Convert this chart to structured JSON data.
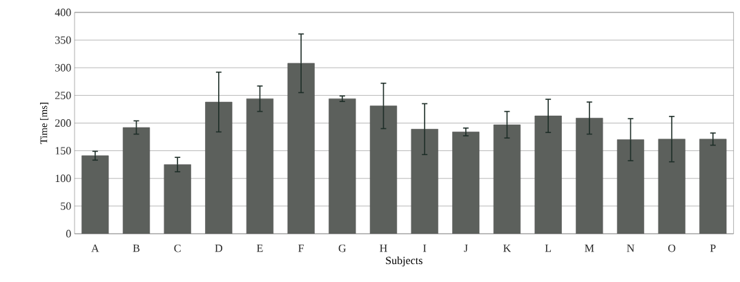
{
  "chart_data": {
    "type": "bar",
    "xlabel": "Subjects",
    "ylabel": "Time [ms]",
    "categories": [
      "A",
      "B",
      "C",
      "D",
      "E",
      "F",
      "G",
      "H",
      "I",
      "J",
      "K",
      "L",
      "M",
      "N",
      "O",
      "P"
    ],
    "values": [
      141,
      192,
      125,
      238,
      244,
      308,
      244,
      231,
      189,
      184,
      197,
      213,
      209,
      170,
      171,
      171
    ],
    "errors": [
      8,
      12,
      13,
      54,
      23,
      53,
      5,
      41,
      46,
      7,
      24,
      30,
      29,
      38,
      41,
      11
    ],
    "color": "#5c605c",
    "ylim": [
      0,
      400
    ],
    "yticks": [
      0,
      50,
      100,
      150,
      200,
      250,
      300,
      350,
      400
    ],
    "grid": "y"
  }
}
